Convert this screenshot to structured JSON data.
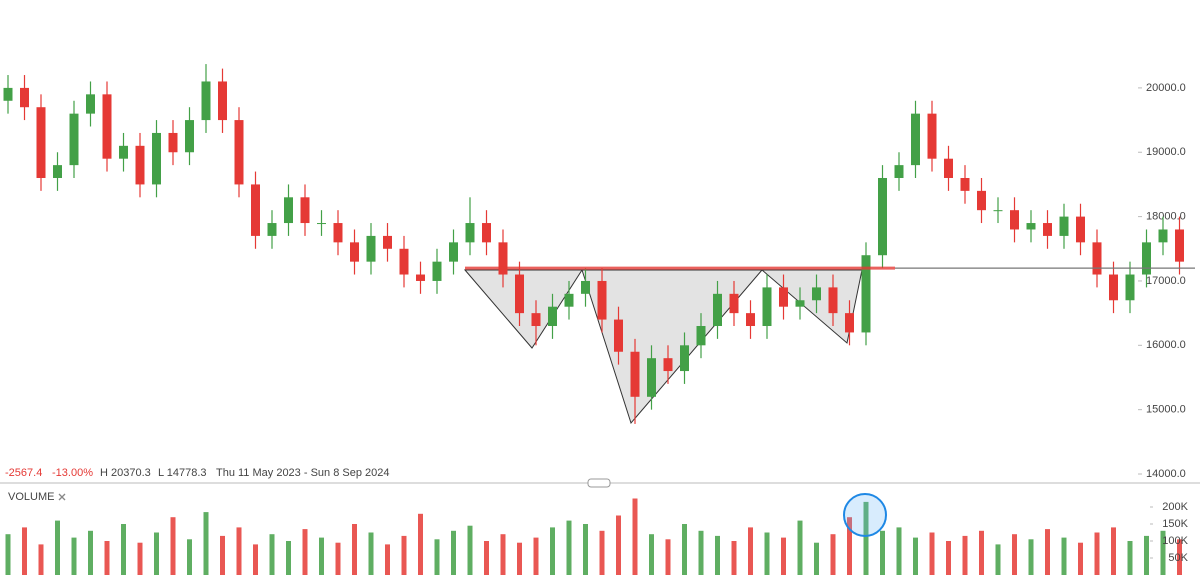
{
  "chart_data": [
    {
      "type": "candlestick",
      "info": {
        "change": "-2567.4",
        "change_pct": "-13.00%",
        "high": "H 20370.3",
        "low": "L 14778.3",
        "range": "Thu 11 May 2023 - Sun 8 Sep 2024"
      },
      "open": [
        19800,
        20000,
        19700,
        18600,
        18800,
        19600,
        19900,
        18900,
        19100,
        18500,
        19300,
        19000,
        19500,
        20100,
        19500,
        18500,
        17700,
        17900,
        18300,
        17900,
        17900,
        17600,
        17300,
        17700,
        17500,
        17100,
        17000,
        17300,
        17600,
        17900,
        17600,
        17100,
        16500,
        16300,
        16600,
        16800,
        17000,
        16400,
        15900,
        15200,
        15800,
        15600,
        16000,
        16300,
        16800,
        16500,
        16300,
        16900,
        16600,
        16700,
        16900,
        16500,
        16200,
        17400,
        18600,
        18800,
        19600,
        18900,
        18600,
        18400,
        18100,
        18100,
        17800,
        17900,
        17700,
        18000,
        17600,
        17100,
        16700,
        17100,
        17600,
        17800
      ],
      "high": [
        20200,
        20200,
        19900,
        19000,
        19800,
        20100,
        20100,
        19300,
        19300,
        19500,
        19500,
        19700,
        20370.3,
        20300,
        19700,
        18700,
        18100,
        18500,
        18500,
        18100,
        18100,
        17800,
        17900,
        17900,
        17700,
        17300,
        17500,
        17800,
        18300,
        18100,
        17800,
        17300,
        16700,
        16800,
        17000,
        17200,
        17200,
        16600,
        16100,
        16000,
        16000,
        16200,
        16500,
        17000,
        17000,
        16700,
        17100,
        17100,
        16900,
        17100,
        17100,
        16700,
        17600,
        18800,
        19000,
        19800,
        19800,
        19100,
        18800,
        18600,
        18300,
        18300,
        18100,
        18100,
        18200,
        18200,
        17800,
        17300,
        17300,
        17800,
        18000,
        18000
      ],
      "low": [
        19600,
        19500,
        18400,
        18400,
        18600,
        19400,
        18700,
        18700,
        18300,
        18300,
        18800,
        18800,
        19300,
        19300,
        18300,
        17500,
        17500,
        17700,
        17700,
        17700,
        17400,
        17100,
        17100,
        17300,
        16900,
        16800,
        16800,
        17100,
        17400,
        17400,
        16900,
        16300,
        16000,
        16100,
        16400,
        16600,
        16200,
        15700,
        14778.3,
        15000,
        15400,
        15400,
        15800,
        16100,
        16300,
        16100,
        16100,
        16400,
        16400,
        16500,
        16300,
        16000,
        16000,
        17200,
        18400,
        18600,
        18700,
        18400,
        18200,
        17900,
        17900,
        17600,
        17600,
        17500,
        17500,
        17400,
        16900,
        16500,
        16500,
        16900,
        17400,
        17100
      ],
      "close": [
        20000,
        19700,
        18600,
        18800,
        19600,
        19900,
        18900,
        19100,
        18500,
        19300,
        19000,
        19500,
        20100,
        19500,
        18500,
        17700,
        17900,
        18300,
        17900,
        17900,
        17600,
        17300,
        17700,
        17500,
        17100,
        17000,
        17300,
        17600,
        17900,
        17600,
        17100,
        16500,
        16300,
        16600,
        16800,
        17000,
        16400,
        15900,
        15200,
        15800,
        15600,
        16000,
        16300,
        16800,
        16500,
        16300,
        16900,
        16600,
        16700,
        16900,
        16500,
        16200,
        17400,
        18600,
        18800,
        19600,
        18900,
        18600,
        18400,
        18100,
        18100,
        17800,
        17900,
        17700,
        18000,
        17600,
        17100,
        16700,
        17100,
        17600,
        17800,
        17300
      ],
      "up_color": "#43a047",
      "down_color": "#e53935",
      "neckline": 17200,
      "ylim": [
        13907,
        21366
      ],
      "yticks": [
        {
          "value": 14000,
          "label": "14000.0"
        },
        {
          "value": 15000,
          "label": "15000.0"
        },
        {
          "value": 16000,
          "label": "16000.0"
        },
        {
          "value": 17000,
          "label": "17000.0"
        },
        {
          "value": 18000,
          "label": "18000.0"
        },
        {
          "value": 19000,
          "label": "19000.0"
        },
        {
          "value": 20000,
          "label": "20000.0"
        }
      ]
    },
    {
      "type": "bar",
      "title": "VOLUME",
      "values": [
        120000,
        140000,
        90000,
        160000,
        110000,
        130000,
        100000,
        150000,
        95000,
        125000,
        170000,
        105000,
        185000,
        115000,
        140000,
        90000,
        120000,
        100000,
        135000,
        110000,
        95000,
        150000,
        125000,
        90000,
        115000,
        180000,
        105000,
        130000,
        145000,
        100000,
        120000,
        95000,
        110000,
        140000,
        160000,
        150000,
        130000,
        175000,
        225000,
        120000,
        105000,
        150000,
        130000,
        115000,
        100000,
        140000,
        125000,
        110000,
        160000,
        95000,
        120000,
        170000,
        215000,
        130000,
        140000,
        110000,
        125000,
        100000,
        115000,
        130000,
        90000,
        120000,
        105000,
        135000,
        110000,
        95000,
        125000,
        140000,
        100000,
        115000,
        130000,
        105000
      ],
      "ylim": [
        0,
        250000
      ],
      "yticks": [
        {
          "value": 50000,
          "label": "50K"
        },
        {
          "value": 100000,
          "label": "100K"
        },
        {
          "value": 150000,
          "label": "150K"
        },
        {
          "value": 200000,
          "label": "200K"
        }
      ]
    }
  ]
}
